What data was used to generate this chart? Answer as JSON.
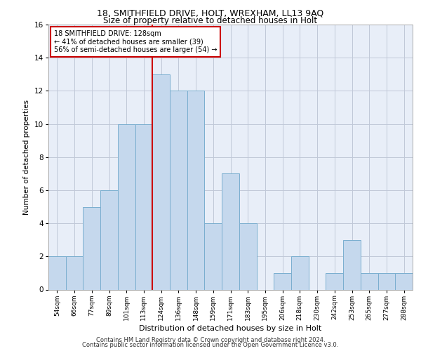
{
  "title1": "18, SMITHFIELD DRIVE, HOLT, WREXHAM, LL13 9AQ",
  "title2": "Size of property relative to detached houses in Holt",
  "xlabel": "Distribution of detached houses by size in Holt",
  "ylabel": "Number of detached properties",
  "categories": [
    "54sqm",
    "66sqm",
    "77sqm",
    "89sqm",
    "101sqm",
    "113sqm",
    "124sqm",
    "136sqm",
    "148sqm",
    "159sqm",
    "171sqm",
    "183sqm",
    "195sqm",
    "206sqm",
    "218sqm",
    "230sqm",
    "242sqm",
    "253sqm",
    "265sqm",
    "277sqm",
    "288sqm"
  ],
  "values": [
    2,
    2,
    5,
    6,
    10,
    10,
    13,
    12,
    12,
    4,
    7,
    4,
    0,
    1,
    2,
    0,
    1,
    3,
    1,
    1,
    1
  ],
  "bar_color": "#c5d8ed",
  "bar_edge_color": "#7aaecf",
  "vline_x": 5.5,
  "vline_color": "#cc0000",
  "annotation_text": "18 SMITHFIELD DRIVE: 128sqm\n← 41% of detached houses are smaller (39)\n56% of semi-detached houses are larger (54) →",
  "annotation_box_color": "#ffffff",
  "annotation_box_edge": "#cc0000",
  "ylim": [
    0,
    16
  ],
  "yticks": [
    0,
    2,
    4,
    6,
    8,
    10,
    12,
    14,
    16
  ],
  "grid_color": "#c0c8d8",
  "background_color": "#e8eef8",
  "footer1": "Contains HM Land Registry data © Crown copyright and database right 2024.",
  "footer2": "Contains public sector information licensed under the Open Government Licence v3.0."
}
